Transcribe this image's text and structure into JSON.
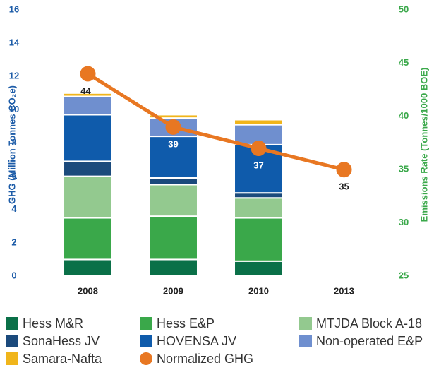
{
  "chart_data": {
    "type": "bar",
    "categories": [
      "2008",
      "2009",
      "2010",
      "2013"
    ],
    "y_label": "GHG (Million Tonnes CO₂e)",
    "y2_label": "Emissions Rate (Tonnes/1000 BOE)",
    "stacked": true,
    "ylim": [
      0,
      16
    ],
    "yticks": [
      0,
      2,
      4,
      6,
      8,
      10,
      12,
      14,
      16
    ],
    "y2lim": [
      25,
      50
    ],
    "y2ticks": [
      25,
      30,
      35,
      40,
      45,
      50
    ],
    "series": [
      {
        "name": "Hess M&R",
        "color": "#0a7048",
        "values": [
          1.0,
          1.0,
          0.9,
          null
        ]
      },
      {
        "name": "Hess E&P",
        "color": "#3aa84a",
        "values": [
          2.5,
          2.6,
          2.6,
          null
        ]
      },
      {
        "name": "MTJDA Block A-18",
        "color": "#93c98f",
        "values": [
          2.5,
          1.9,
          1.2,
          null
        ]
      },
      {
        "name": "SonaHess JV",
        "color": "#1b4a7c",
        "values": [
          0.9,
          0.4,
          0.3,
          null
        ]
      },
      {
        "name": "HOVENSA JV",
        "color": "#0f5bab",
        "values": [
          2.8,
          2.5,
          2.9,
          null
        ]
      },
      {
        "name": "Non-operated E&P",
        "color": "#6f8fcf",
        "values": [
          1.1,
          1.1,
          1.2,
          null
        ]
      },
      {
        "name": "Samara-Nafta",
        "color": "#f0b51b",
        "values": [
          0.2,
          0.2,
          0.3,
          null
        ]
      },
      {
        "name": "Normalized GHG",
        "color": "#e87722",
        "type": "line",
        "axis": "y2",
        "values": [
          44,
          39,
          37,
          35
        ]
      }
    ],
    "legend": "bottom"
  }
}
